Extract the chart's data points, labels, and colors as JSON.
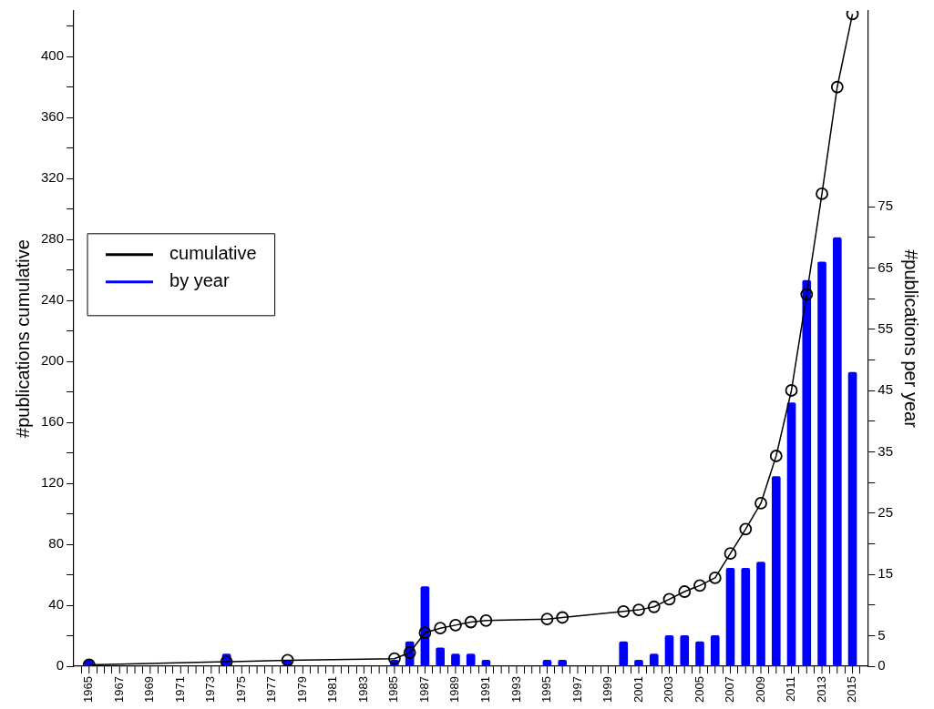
{
  "chart_data": {
    "type": "line",
    "ylabel": "#publications cumulative",
    "y2label": "#publications per year",
    "x": [
      1965,
      1974,
      1978,
      1985,
      1986,
      1987,
      1988,
      1989,
      1990,
      1991,
      1995,
      1996,
      2000,
      2001,
      2002,
      2003,
      2004,
      2005,
      2006,
      2007,
      2008,
      2009,
      2010,
      2011,
      2012,
      2013,
      2014,
      2015
    ],
    "series": [
      {
        "name": "cumulative",
        "color": "#000000",
        "values": [
          1,
          3,
          4,
          5,
          9,
          22,
          25,
          27,
          29,
          30,
          31,
          32,
          36,
          37,
          39,
          44,
          49,
          53,
          58,
          74,
          90,
          107,
          138,
          181,
          244,
          310,
          380,
          428
        ]
      },
      {
        "name": "by year",
        "type": "bar",
        "axis": "y2",
        "color": "#0000ff",
        "values": [
          1,
          2,
          1,
          1,
          4,
          13,
          3,
          2,
          2,
          1,
          1,
          1,
          4,
          1,
          2,
          5,
          5,
          4,
          5,
          16,
          16,
          17,
          31,
          43,
          63,
          66,
          70,
          48
        ]
      }
    ],
    "xlim": [
      1964,
      2016
    ],
    "xticks": [
      1965,
      {
        "value": 1966,
        "label": null
      },
      1967,
      {
        "value": 1968,
        "label": null
      },
      1969,
      {
        "value": 1970,
        "label": null
      },
      1971,
      {
        "value": 1972,
        "label": null
      },
      1973,
      {
        "value": 1974,
        "label": null
      },
      1975,
      {
        "value": 1976,
        "label": null
      },
      1977,
      {
        "value": 1978,
        "label": null
      },
      1979,
      {
        "value": 1980,
        "label": null
      },
      1981,
      {
        "value": 1982,
        "label": null
      },
      1983,
      {
        "value": 1984,
        "label": null
      },
      1985,
      {
        "value": 1986,
        "label": null
      },
      1987,
      {
        "value": 1988,
        "label": null
      },
      1989,
      {
        "value": 1990,
        "label": null
      },
      1991,
      {
        "value": 1992,
        "label": null
      },
      1993,
      {
        "value": 1994,
        "label": null
      },
      1995,
      {
        "value": 1996,
        "label": null
      },
      1997,
      {
        "value": 1998,
        "label": null
      },
      1999,
      {
        "value": 2000,
        "label": null
      },
      2001,
      {
        "value": 2002,
        "label": null
      },
      2003,
      {
        "value": 2004,
        "label": null
      },
      2005,
      {
        "value": 2006,
        "label": null
      },
      2007,
      {
        "value": 2008,
        "label": null
      },
      2009,
      {
        "value": 2010,
        "label": null
      },
      2011,
      {
        "value": 2012,
        "label": null
      },
      2013,
      {
        "value": 2014,
        "label": null
      },
      2015
    ],
    "ylim": [
      0,
      430
    ],
    "yticks": [
      0,
      {
        "value": 20,
        "label": null
      },
      40,
      {
        "value": 60,
        "label": null
      },
      80,
      {
        "value": 100,
        "label": null
      },
      120,
      {
        "value": 140,
        "label": null
      },
      160,
      {
        "value": 180,
        "label": null
      },
      200,
      {
        "value": 220,
        "label": null
      },
      240,
      {
        "value": 260,
        "label": null
      },
      280,
      {
        "value": 300,
        "label": null
      },
      320,
      {
        "value": 340,
        "label": null
      },
      360,
      {
        "value": 380,
        "label": null
      },
      400,
      {
        "value": 420,
        "label": null
      }
    ],
    "y2lim": [
      0,
      107
    ],
    "y2ticks": [
      0,
      5,
      {
        "value": 10,
        "label": null
      },
      15,
      {
        "value": 20,
        "label": null
      },
      25,
      {
        "value": 30,
        "label": null
      },
      35,
      {
        "value": 40,
        "label": null
      },
      45,
      {
        "value": 50,
        "label": null
      },
      55,
      {
        "value": 60,
        "label": null
      },
      65,
      {
        "value": 70,
        "label": null
      },
      75
    ],
    "grid": false,
    "legend": "left",
    "marker": "circle",
    "line_style": "solid"
  }
}
